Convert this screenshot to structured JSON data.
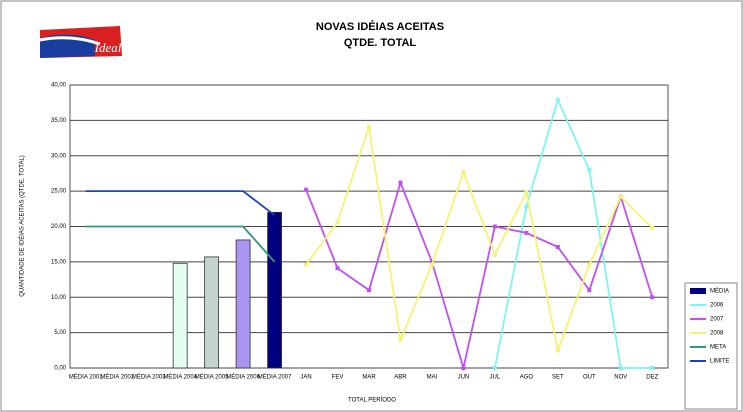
{
  "chart_data": {
    "type": "combo",
    "title": "NOVAS IDÉIAS ACEITAS",
    "subtitle": "QTDE. TOTAL",
    "logo_text": "Ideal",
    "x_label": "TOTAL PERÍODO",
    "y_label": "QUANTIDADE DE IDÉIAS ACEITAS (QTDE. TOTAL)",
    "categories": [
      "MÉDIA 2001",
      "MÉDIA 2002",
      "MÉDIA 2003",
      "MÉDIA 2004",
      "MÉDIA 2005",
      "MÉDIA 2006",
      "MÉDIA 2007",
      "JAN",
      "FEV",
      "MAR",
      "ABR",
      "MAI",
      "JUN",
      "JUL",
      "AGO",
      "SET",
      "OUT",
      "NOV",
      "DEZ"
    ],
    "ylim": [
      0,
      40
    ],
    "yticks": [
      {
        "value": 0,
        "label": "0,00"
      },
      {
        "value": 5,
        "label": "5,00"
      },
      {
        "value": 10,
        "label": "10,00"
      },
      {
        "value": 15,
        "label": "15,00"
      },
      {
        "value": 20,
        "label": "20,00"
      },
      {
        "value": 25,
        "label": "25,00"
      },
      {
        "value": 30,
        "label": "30,00"
      },
      {
        "value": 35,
        "label": "35,00"
      },
      {
        "value": 40,
        "label": "40,00"
      }
    ],
    "grid": true,
    "bars": {
      "name": "MÉDIA",
      "color": "#000080",
      "values": [
        null,
        null,
        null,
        14.8,
        15.7,
        18.1,
        22
      ],
      "colors": [
        null,
        null,
        null,
        "#e4fff2",
        "#c5d3d0",
        "#a994f0",
        "#000080"
      ]
    },
    "series": [
      {
        "name": "2006",
        "color": "#7ff4f4",
        "values": [
          null,
          null,
          null,
          null,
          null,
          null,
          null,
          null,
          null,
          null,
          null,
          null,
          null,
          0,
          22.8,
          37.9,
          28,
          0,
          0
        ]
      },
      {
        "name": "2007",
        "color": "#c050f0",
        "values": [
          null,
          null,
          null,
          null,
          null,
          null,
          null,
          25.2,
          14.1,
          11,
          26.2,
          15,
          0,
          20,
          19.1,
          17.1,
          11,
          24.2,
          10
        ]
      },
      {
        "name": "2008",
        "color": "#f4f470",
        "values": [
          null,
          null,
          null,
          null,
          null,
          null,
          null,
          14.6,
          20.6,
          34.1,
          4,
          14.6,
          27.7,
          16,
          24.8,
          2.5,
          14.6,
          24.2,
          19.8
        ]
      },
      {
        "name": "META",
        "color": "#2f9a7a",
        "values": [
          20,
          20,
          20,
          20,
          20,
          20,
          15,
          null,
          null,
          null,
          null,
          null,
          null,
          null,
          null,
          null,
          null,
          null,
          null
        ]
      },
      {
        "name": "LIMITE",
        "color": "#2040c0",
        "values": [
          25,
          25,
          25,
          25,
          25,
          25,
          21.6,
          null,
          null,
          null,
          null,
          null,
          null,
          null,
          null,
          null,
          null,
          null,
          null
        ]
      }
    ]
  }
}
